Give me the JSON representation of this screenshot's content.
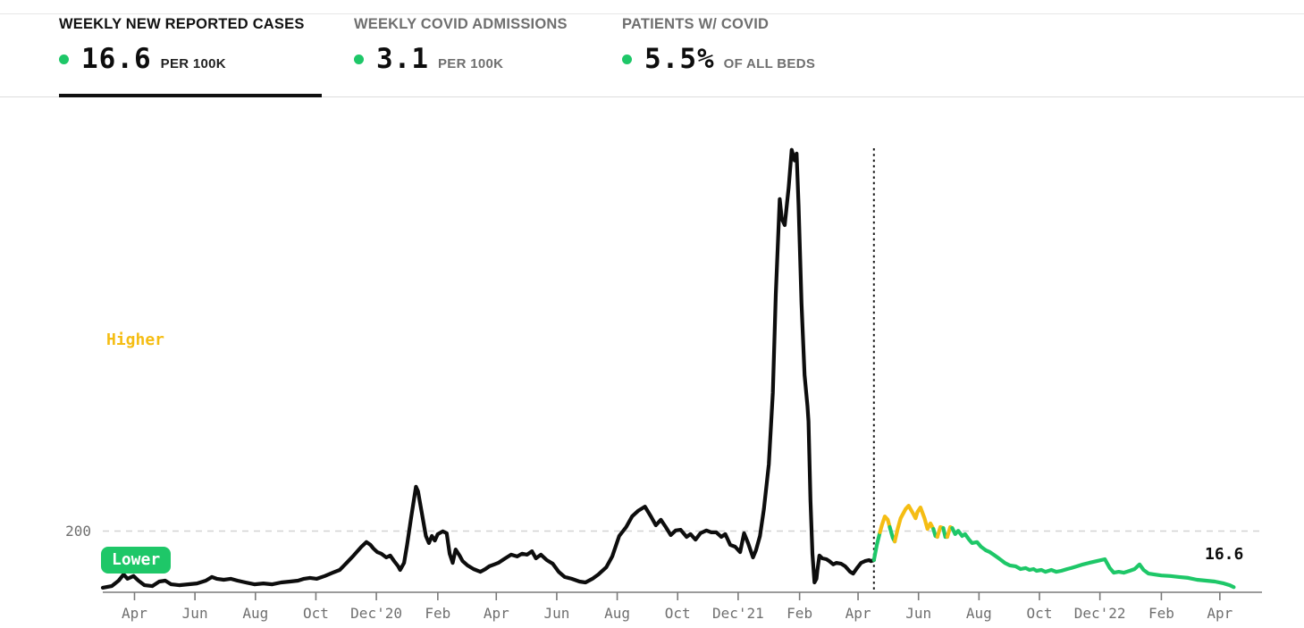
{
  "tabs": [
    {
      "title": "WEEKLY NEW REPORTED CASES",
      "value": "16.6",
      "unit": "PER 100K",
      "active": true
    },
    {
      "title": "WEEKLY COVID ADMISSIONS",
      "value": "3.1",
      "unit": "PER 100K",
      "active": false
    },
    {
      "title": "PATIENTS W/ COVID",
      "value": "5.5%",
      "unit": "OF ALL BEDS",
      "active": false
    }
  ],
  "chart": {
    "gridline_label": "200",
    "higher_label": "Higher",
    "lower_label": "Lower",
    "end_value_label": "16.6"
  },
  "colors": {
    "green": "#1ec768",
    "yellow": "#f5bd13",
    "line_black": "#0d0d0d",
    "axis_gray": "#7a7a7a",
    "grid_dash_gray": "#d3d3d3",
    "muted_text": "#6f6f6f",
    "reference_line": "#141414"
  },
  "chart_data": {
    "type": "line",
    "title": "Weekly new reported cases per 100k",
    "ylabel": "",
    "xlabel": "",
    "ylim": [
      0,
      1500
    ],
    "gridline_value": 200,
    "grid": "single dashed horizontal gridline at 200",
    "legend_position": "none",
    "x_range": [
      "2020-03-14",
      "2023-04-29"
    ],
    "reference_date": "2022-05-01",
    "color_meaning": {
      "k": "historical (before past-year marker)",
      "g": "lower",
      "y": "higher"
    },
    "ticks": [
      {
        "date": "2020-04-15",
        "label": "Apr"
      },
      {
        "date": "2020-06-15",
        "label": "Jun"
      },
      {
        "date": "2020-08-15",
        "label": "Aug"
      },
      {
        "date": "2020-10-15",
        "label": "Oct"
      },
      {
        "date": "2020-12-15",
        "label": "Dec'20"
      },
      {
        "date": "2021-02-15",
        "label": "Feb"
      },
      {
        "date": "2021-04-15",
        "label": "Apr"
      },
      {
        "date": "2021-06-15",
        "label": "Jun"
      },
      {
        "date": "2021-08-15",
        "label": "Aug"
      },
      {
        "date": "2021-10-15",
        "label": "Oct"
      },
      {
        "date": "2021-12-15",
        "label": "Dec'21"
      },
      {
        "date": "2022-02-15",
        "label": "Feb"
      },
      {
        "date": "2022-04-15",
        "label": "Apr"
      },
      {
        "date": "2022-06-15",
        "label": "Jun"
      },
      {
        "date": "2022-08-15",
        "label": "Aug"
      },
      {
        "date": "2022-10-15",
        "label": "Oct"
      },
      {
        "date": "2022-12-15",
        "label": "Dec'22"
      },
      {
        "date": "2023-02-15",
        "label": "Feb"
      },
      {
        "date": "2023-04-15",
        "label": "Apr"
      }
    ],
    "points": [
      [
        "2020-03-14",
        15,
        "k"
      ],
      [
        "2020-03-23",
        20,
        "k"
      ],
      [
        "2020-03-30",
        38,
        "k"
      ],
      [
        "2020-04-04",
        58,
        "k"
      ],
      [
        "2020-04-08",
        44,
        "k"
      ],
      [
        "2020-04-14",
        53,
        "k"
      ],
      [
        "2020-04-19",
        38,
        "k"
      ],
      [
        "2020-04-25",
        23,
        "k"
      ],
      [
        "2020-05-03",
        20,
        "k"
      ],
      [
        "2020-05-10",
        35,
        "k"
      ],
      [
        "2020-05-16",
        38,
        "k"
      ],
      [
        "2020-05-22",
        26,
        "k"
      ],
      [
        "2020-05-30",
        23,
        "k"
      ],
      [
        "2020-06-08",
        26,
        "k"
      ],
      [
        "2020-06-17",
        29,
        "k"
      ],
      [
        "2020-06-26",
        38,
        "k"
      ],
      [
        "2020-07-02",
        50,
        "k"
      ],
      [
        "2020-07-07",
        44,
        "k"
      ],
      [
        "2020-07-14",
        41,
        "k"
      ],
      [
        "2020-07-21",
        44,
        "k"
      ],
      [
        "2020-07-28",
        38,
        "k"
      ],
      [
        "2020-08-05",
        32,
        "k"
      ],
      [
        "2020-08-14",
        26,
        "k"
      ],
      [
        "2020-08-23",
        29,
        "k"
      ],
      [
        "2020-09-01",
        26,
        "k"
      ],
      [
        "2020-09-10",
        32,
        "k"
      ],
      [
        "2020-09-19",
        35,
        "k"
      ],
      [
        "2020-09-27",
        38,
        "k"
      ],
      [
        "2020-10-03",
        44,
        "k"
      ],
      [
        "2020-10-09",
        47,
        "k"
      ],
      [
        "2020-10-16",
        44,
        "k"
      ],
      [
        "2020-10-24",
        53,
        "k"
      ],
      [
        "2020-11-01",
        64,
        "k"
      ],
      [
        "2020-11-08",
        73,
        "k"
      ],
      [
        "2020-11-15",
        96,
        "k"
      ],
      [
        "2020-11-22",
        120,
        "k"
      ],
      [
        "2020-11-30",
        149,
        "k"
      ],
      [
        "2020-12-05",
        164,
        "k"
      ],
      [
        "2020-12-09",
        155,
        "k"
      ],
      [
        "2020-12-12",
        143,
        "k"
      ],
      [
        "2020-12-16",
        131,
        "k"
      ],
      [
        "2020-12-20",
        126,
        "k"
      ],
      [
        "2020-12-25",
        114,
        "k"
      ],
      [
        "2020-12-29",
        120,
        "k"
      ],
      [
        "2021-01-02",
        102,
        "k"
      ],
      [
        "2021-01-06",
        85,
        "k"
      ],
      [
        "2021-01-08",
        73,
        "k"
      ],
      [
        "2021-01-12",
        96,
        "k"
      ],
      [
        "2021-01-15",
        155,
        "k"
      ],
      [
        "2021-01-19",
        242,
        "k"
      ],
      [
        "2021-01-24",
        345,
        "k"
      ],
      [
        "2021-01-26",
        330,
        "k"
      ],
      [
        "2021-01-30",
        257,
        "k"
      ],
      [
        "2021-02-03",
        184,
        "k"
      ],
      [
        "2021-02-06",
        161,
        "k"
      ],
      [
        "2021-02-09",
        184,
        "k"
      ],
      [
        "2021-02-12",
        169,
        "k"
      ],
      [
        "2021-02-15",
        190,
        "k"
      ],
      [
        "2021-02-20",
        199,
        "k"
      ],
      [
        "2021-02-24",
        193,
        "k"
      ],
      [
        "2021-02-27",
        126,
        "k"
      ],
      [
        "2021-03-02",
        96,
        "k"
      ],
      [
        "2021-03-05",
        140,
        "k"
      ],
      [
        "2021-03-09",
        120,
        "k"
      ],
      [
        "2021-03-12",
        102,
        "k"
      ],
      [
        "2021-03-17",
        88,
        "k"
      ],
      [
        "2021-03-23",
        76,
        "k"
      ],
      [
        "2021-03-30",
        67,
        "k"
      ],
      [
        "2021-04-04",
        76,
        "k"
      ],
      [
        "2021-04-08",
        85,
        "k"
      ],
      [
        "2021-04-13",
        91,
        "k"
      ],
      [
        "2021-04-17",
        96,
        "k"
      ],
      [
        "2021-04-24",
        111,
        "k"
      ],
      [
        "2021-04-30",
        123,
        "k"
      ],
      [
        "2021-05-06",
        117,
        "k"
      ],
      [
        "2021-05-11",
        126,
        "k"
      ],
      [
        "2021-05-16",
        123,
        "k"
      ],
      [
        "2021-05-21",
        134,
        "k"
      ],
      [
        "2021-05-25",
        111,
        "k"
      ],
      [
        "2021-05-30",
        123,
        "k"
      ],
      [
        "2021-06-05",
        105,
        "k"
      ],
      [
        "2021-06-11",
        93,
        "k"
      ],
      [
        "2021-06-17",
        67,
        "k"
      ],
      [
        "2021-06-23",
        50,
        "k"
      ],
      [
        "2021-06-30",
        44,
        "k"
      ],
      [
        "2021-07-08",
        35,
        "k"
      ],
      [
        "2021-07-14",
        32,
        "k"
      ],
      [
        "2021-07-21",
        44,
        "k"
      ],
      [
        "2021-07-27",
        58,
        "k"
      ],
      [
        "2021-08-04",
        82,
        "k"
      ],
      [
        "2021-08-10",
        117,
        "k"
      ],
      [
        "2021-08-17",
        184,
        "k"
      ],
      [
        "2021-08-24",
        213,
        "k"
      ],
      [
        "2021-08-30",
        248,
        "k"
      ],
      [
        "2021-09-05",
        266,
        "k"
      ],
      [
        "2021-09-12",
        280,
        "k"
      ],
      [
        "2021-09-18",
        248,
        "k"
      ],
      [
        "2021-09-23",
        219,
        "k"
      ],
      [
        "2021-09-28",
        237,
        "k"
      ],
      [
        "2021-10-03",
        213,
        "k"
      ],
      [
        "2021-10-08",
        187,
        "k"
      ],
      [
        "2021-10-13",
        202,
        "k"
      ],
      [
        "2021-10-18",
        204,
        "k"
      ],
      [
        "2021-10-24",
        181,
        "k"
      ],
      [
        "2021-10-28",
        190,
        "k"
      ],
      [
        "2021-11-02",
        172,
        "k"
      ],
      [
        "2021-11-07",
        193,
        "k"
      ],
      [
        "2021-11-13",
        202,
        "k"
      ],
      [
        "2021-11-18",
        196,
        "k"
      ],
      [
        "2021-11-23",
        196,
        "k"
      ],
      [
        "2021-11-28",
        181,
        "k"
      ],
      [
        "2021-12-02",
        190,
        "k"
      ],
      [
        "2021-12-07",
        155,
        "k"
      ],
      [
        "2021-12-12",
        149,
        "k"
      ],
      [
        "2021-12-17",
        131,
        "k"
      ],
      [
        "2021-12-21",
        193,
        "k"
      ],
      [
        "2021-12-25",
        161,
        "k"
      ],
      [
        "2021-12-30",
        114,
        "k"
      ],
      [
        "2022-01-02",
        137,
        "k"
      ],
      [
        "2022-01-06",
        184,
        "k"
      ],
      [
        "2022-01-10",
        272,
        "k"
      ],
      [
        "2022-01-15",
        418,
        "k"
      ],
      [
        "2022-01-19",
        652,
        "k"
      ],
      [
        "2022-01-22",
        973,
        "k"
      ],
      [
        "2022-01-26",
        1285,
        "k"
      ],
      [
        "2022-01-28",
        1221,
        "k"
      ],
      [
        "2022-01-31",
        1200,
        "k"
      ],
      [
        "2022-02-04",
        1323,
        "k"
      ],
      [
        "2022-02-07",
        1446,
        "k"
      ],
      [
        "2022-02-10",
        1411,
        "k"
      ],
      [
        "2022-02-12",
        1434,
        "k"
      ],
      [
        "2022-02-14",
        1264,
        "k"
      ],
      [
        "2022-02-17",
        943,
        "k"
      ],
      [
        "2022-02-20",
        710,
        "k"
      ],
      [
        "2022-02-23",
        607,
        "k"
      ],
      [
        "2022-02-24",
        558,
        "k"
      ],
      [
        "2022-02-26",
        301,
        "k"
      ],
      [
        "2022-02-28",
        126,
        "k"
      ],
      [
        "2022-03-02",
        32,
        "k"
      ],
      [
        "2022-03-04",
        44,
        "k"
      ],
      [
        "2022-03-05",
        73,
        "k"
      ],
      [
        "2022-03-07",
        120,
        "k"
      ],
      [
        "2022-03-10",
        111,
        "k"
      ],
      [
        "2022-03-14",
        108,
        "k"
      ],
      [
        "2022-03-17",
        102,
        "k"
      ],
      [
        "2022-03-21",
        91,
        "k"
      ],
      [
        "2022-03-24",
        96,
        "k"
      ],
      [
        "2022-03-29",
        93,
        "k"
      ],
      [
        "2022-04-02",
        85,
        "k"
      ],
      [
        "2022-04-07",
        67,
        "k"
      ],
      [
        "2022-04-10",
        61,
        "k"
      ],
      [
        "2022-04-14",
        79,
        "k"
      ],
      [
        "2022-04-18",
        96,
        "k"
      ],
      [
        "2022-04-22",
        102,
        "k"
      ],
      [
        "2022-04-26",
        105,
        "k"
      ],
      [
        "2022-04-28",
        102,
        "k"
      ],
      [
        "2022-05-01",
        105,
        "k"
      ],
      [
        "2022-05-04",
        155,
        "g"
      ],
      [
        "2022-05-07",
        196,
        "g"
      ],
      [
        "2022-05-09",
        219,
        "y"
      ],
      [
        "2022-05-12",
        248,
        "y"
      ],
      [
        "2022-05-15",
        237,
        "y"
      ],
      [
        "2022-05-17",
        213,
        "y"
      ],
      [
        "2022-05-20",
        178,
        "g"
      ],
      [
        "2022-05-22",
        166,
        "g"
      ],
      [
        "2022-05-25",
        207,
        "y"
      ],
      [
        "2022-05-28",
        242,
        "y"
      ],
      [
        "2022-06-02",
        272,
        "y"
      ],
      [
        "2022-06-05",
        283,
        "y"
      ],
      [
        "2022-06-09",
        260,
        "y"
      ],
      [
        "2022-06-12",
        242,
        "y"
      ],
      [
        "2022-06-14",
        263,
        "y"
      ],
      [
        "2022-06-17",
        277,
        "y"
      ],
      [
        "2022-06-21",
        242,
        "y"
      ],
      [
        "2022-06-24",
        207,
        "y"
      ],
      [
        "2022-06-27",
        225,
        "y"
      ],
      [
        "2022-06-30",
        207,
        "y"
      ],
      [
        "2022-07-02",
        184,
        "g"
      ],
      [
        "2022-07-04",
        181,
        "g"
      ],
      [
        "2022-07-07",
        213,
        "y"
      ],
      [
        "2022-07-10",
        210,
        "y"
      ],
      [
        "2022-07-12",
        181,
        "g"
      ],
      [
        "2022-07-14",
        181,
        "g"
      ],
      [
        "2022-07-17",
        213,
        "y"
      ],
      [
        "2022-07-19",
        210,
        "y"
      ],
      [
        "2022-07-22",
        190,
        "g"
      ],
      [
        "2022-07-25",
        201,
        "g"
      ],
      [
        "2022-07-29",
        184,
        "g"
      ],
      [
        "2022-08-01",
        190,
        "g"
      ],
      [
        "2022-08-05",
        172,
        "g"
      ],
      [
        "2022-08-08",
        161,
        "g"
      ],
      [
        "2022-08-13",
        164,
        "g"
      ],
      [
        "2022-08-17",
        149,
        "g"
      ],
      [
        "2022-08-22",
        137,
        "g"
      ],
      [
        "2022-08-26",
        131,
        "g"
      ],
      [
        "2022-08-31",
        120,
        "g"
      ],
      [
        "2022-09-04",
        111,
        "g"
      ],
      [
        "2022-09-10",
        96,
        "g"
      ],
      [
        "2022-09-15",
        88,
        "g"
      ],
      [
        "2022-09-21",
        85,
        "g"
      ],
      [
        "2022-09-26",
        76,
        "g"
      ],
      [
        "2022-10-01",
        79,
        "g"
      ],
      [
        "2022-10-05",
        73,
        "g"
      ],
      [
        "2022-10-09",
        76,
        "g"
      ],
      [
        "2022-10-12",
        70,
        "g"
      ],
      [
        "2022-10-17",
        73,
        "g"
      ],
      [
        "2022-10-21",
        67,
        "g"
      ],
      [
        "2022-10-27",
        73,
        "g"
      ],
      [
        "2022-11-01",
        67,
        "g"
      ],
      [
        "2022-11-06",
        70,
        "g"
      ],
      [
        "2022-11-12",
        76,
        "g"
      ],
      [
        "2022-11-16",
        79,
        "g"
      ],
      [
        "2022-11-22",
        85,
        "g"
      ],
      [
        "2022-11-28",
        91,
        "g"
      ],
      [
        "2022-12-04",
        96,
        "g"
      ],
      [
        "2022-12-12",
        102,
        "g"
      ],
      [
        "2022-12-20",
        108,
        "g"
      ],
      [
        "2022-12-25",
        79,
        "g"
      ],
      [
        "2022-12-29",
        64,
        "g"
      ],
      [
        "2023-01-03",
        67,
        "g"
      ],
      [
        "2023-01-08",
        64,
        "g"
      ],
      [
        "2023-01-14",
        70,
        "g"
      ],
      [
        "2023-01-19",
        76,
        "g"
      ],
      [
        "2023-01-24",
        91,
        "g"
      ],
      [
        "2023-01-28",
        73,
        "g"
      ],
      [
        "2023-02-02",
        61,
        "g"
      ],
      [
        "2023-02-08",
        58,
        "g"
      ],
      [
        "2023-02-15",
        55,
        "g"
      ],
      [
        "2023-02-24",
        53,
        "g"
      ],
      [
        "2023-03-05",
        50,
        "g"
      ],
      [
        "2023-03-14",
        47,
        "g"
      ],
      [
        "2023-03-23",
        41,
        "g"
      ],
      [
        "2023-04-01",
        38,
        "g"
      ],
      [
        "2023-04-10",
        35,
        "g"
      ],
      [
        "2023-04-19",
        29,
        "g"
      ],
      [
        "2023-04-25",
        23,
        "g"
      ],
      [
        "2023-04-29",
        16.6,
        "g"
      ]
    ]
  }
}
